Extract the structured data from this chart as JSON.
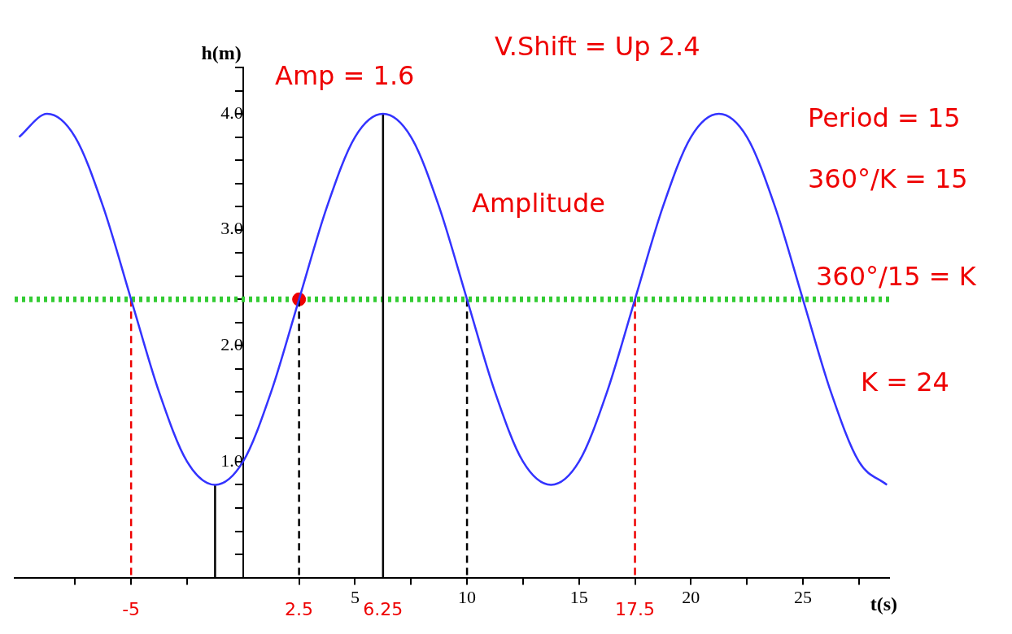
{
  "chart_data": {
    "type": "line",
    "xlabel": "t(s)",
    "ylabel": "h(m)",
    "xlim": [
      -10.2,
      28.85
    ],
    "ylim": [
      0,
      4.4
    ],
    "xticks": [
      {
        "value": -7.5,
        "label": null
      },
      {
        "value": -5,
        "label": null
      },
      {
        "value": -2.5,
        "label": null
      },
      {
        "value": 2.5,
        "label": null
      },
      5,
      {
        "value": 7.5,
        "label": null
      },
      10,
      {
        "value": 12.5,
        "label": null
      },
      15,
      {
        "value": 17.5,
        "label": null
      },
      20,
      {
        "value": 22.5,
        "label": null
      },
      25,
      {
        "value": 27.5,
        "label": null
      }
    ],
    "yticks": [
      {
        "value": 0.2,
        "label": null
      },
      {
        "value": 0.4,
        "label": null
      },
      {
        "value": 0.6,
        "label": null
      },
      {
        "value": 0.8,
        "label": null
      },
      {
        "value": 1,
        "label": "1.0"
      },
      {
        "value": 1.2,
        "label": null
      },
      {
        "value": 1.4,
        "label": null
      },
      {
        "value": 1.6,
        "label": null
      },
      {
        "value": 1.8,
        "label": null
      },
      {
        "value": 2,
        "label": "2.0"
      },
      {
        "value": 2.2,
        "label": null
      },
      {
        "value": 2.4,
        "label": null
      },
      {
        "value": 2.6,
        "label": null
      },
      {
        "value": 2.8,
        "label": null
      },
      {
        "value": 3,
        "label": "3.0"
      },
      {
        "value": 3.2,
        "label": null
      },
      {
        "value": 3.4,
        "label": null
      },
      {
        "value": 3.6,
        "label": null
      },
      {
        "value": 3.8,
        "label": null
      },
      {
        "value": 4,
        "label": "4.0"
      },
      {
        "value": 4.2,
        "label": null
      },
      {
        "value": 4.4,
        "label": null
      }
    ],
    "grid": false,
    "legend": false,
    "marker": "none",
    "line_style": "solid",
    "series": [
      {
        "color": "#3333ff",
        "x": [
          -10,
          -8.75,
          -7.5,
          -6.25,
          -5,
          -3.75,
          -2.5,
          -1.25,
          0,
          1.25,
          2.5,
          3.75,
          5,
          6.25,
          7.5,
          8.75,
          10,
          11.25,
          12.5,
          13.75,
          15,
          16.25,
          17.5,
          18.75,
          20,
          21.25,
          22.5,
          23.75,
          25,
          26.25,
          27.5,
          28.75
        ],
        "values": [
          3.8,
          4.0,
          3.8,
          3.2,
          2.4,
          1.6,
          1.0,
          0.8,
          1.0,
          1.6,
          2.4,
          3.2,
          3.8,
          4.0,
          3.8,
          3.2,
          2.4,
          1.6,
          1.0,
          0.8,
          1.0,
          1.6,
          2.4,
          3.2,
          3.8,
          4.0,
          3.8,
          3.2,
          2.4,
          1.6,
          1.0,
          0.8
        ]
      },
      {
        "color": "#000000",
        "x": [
          -1.25,
          -1.25
        ],
        "values": [
          0.8,
          0
        ]
      },
      {
        "color": "#000000",
        "line_style": "dashed",
        "x": [
          2.5,
          2.5
        ],
        "values": [
          2.4,
          0
        ]
      },
      {
        "color": "#000000",
        "x": [
          6.25,
          6.25
        ],
        "values": [
          4.0,
          0
        ]
      },
      {
        "color": "#000000",
        "line_style": "dashed",
        "x": [
          10,
          10
        ],
        "values": [
          2.4,
          0
        ]
      },
      {
        "color": "#ee0000",
        "line_style": "dashed",
        "x": [
          -5,
          -5
        ],
        "values": [
          2.4,
          0
        ]
      },
      {
        "color": "#ee0000",
        "line_style": "dashed",
        "x": [
          17.5,
          17.5
        ],
        "values": [
          2.4,
          0
        ]
      },
      {
        "type": "scatter",
        "marker": "circle",
        "color": "#ee0000",
        "x": [
          2.5
        ],
        "values": [
          2.4
        ]
      }
    ],
    "ref_lines": [
      {
        "axis": "y",
        "value": 2.4,
        "color": "#33cc33",
        "line_style": "dotted"
      }
    ],
    "annotations": [
      "Amp = 1.6",
      "V.Shift = Up 2.4",
      "Amplitude",
      "Period = 15",
      "360°/K = 15",
      "360°/15 = K",
      "K = 24",
      {
        "text": "-5",
        "x": -5,
        "y": 0
      },
      {
        "text": "2.5",
        "x": 2.5,
        "y": 0
      },
      {
        "text": "6.25",
        "x": 6.25,
        "y": 0
      },
      {
        "text": "17.5",
        "x": 17.5,
        "y": 0
      }
    ]
  }
}
